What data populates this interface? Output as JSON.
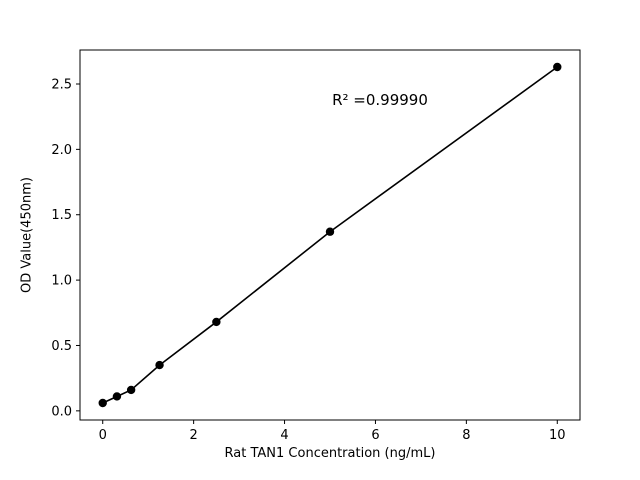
{
  "chart_data": {
    "type": "scatter",
    "title": "",
    "xlabel": "Rat TAN1 Concentration (ng/mL)",
    "ylabel": "OD Value(450nm)",
    "annotation": "R² =0.99990",
    "x": [
      0,
      0.3125,
      0.625,
      1.25,
      2.5,
      5,
      10
    ],
    "y": [
      0.06,
      0.11,
      0.16,
      0.35,
      0.68,
      1.37,
      2.63
    ],
    "xlim": [
      -0.5,
      10.5
    ],
    "ylim": [
      -0.07,
      2.76
    ],
    "xticks": [
      0,
      2,
      4,
      6,
      8,
      10
    ],
    "yticks": [
      0,
      0.5,
      1,
      1.5,
      2,
      2.5
    ],
    "x_tick_format": "integer",
    "y_tick_format": "one_decimal",
    "grid": false,
    "legend": "none",
    "line_color": "#000000",
    "marker_color": "#000000",
    "frame_color": "#000000",
    "background": "#ffffff"
  }
}
